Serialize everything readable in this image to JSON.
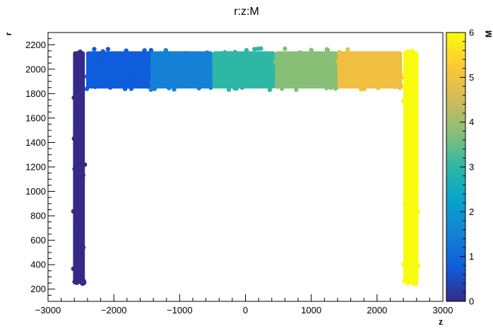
{
  "chart_data": {
    "type": "scatter",
    "title": "r:z:M",
    "xlabel": "z",
    "ylabel": "r",
    "colorbar_label": "M",
    "xlim": [
      -3000,
      3000
    ],
    "ylim": [
      100,
      2300
    ],
    "xticks": [
      -3000,
      -2000,
      -1000,
      0,
      1000,
      2000,
      3000
    ],
    "yticks": [
      200,
      400,
      600,
      800,
      1000,
      1200,
      1400,
      1600,
      1800,
      2000,
      2200
    ],
    "colorbar": {
      "range": [
        0,
        6
      ],
      "ticks": [
        0,
        1,
        2,
        3,
        4,
        5,
        6
      ],
      "palette": [
        "#352a87",
        "#0f5cdd",
        "#1481d6",
        "#06a4ca",
        "#2eb7a4",
        "#87bf77",
        "#d1bb59",
        "#fec832",
        "#f9fb0e"
      ]
    },
    "grid": false,
    "legend": "none",
    "series": [
      {
        "M": 0,
        "color": "#352a87",
        "z_range": [
          -2620,
          -2440
        ],
        "r_range": [
          240,
          2170
        ]
      },
      {
        "M": 1,
        "color": "#0f5cdd",
        "z_range": [
          -2420,
          -1420
        ],
        "r_range": [
          1830,
          2170
        ]
      },
      {
        "M": 2,
        "color": "#1481d6",
        "z_range": [
          -1440,
          -500
        ],
        "r_range": [
          1830,
          2170
        ]
      },
      {
        "M": 3,
        "color": "#2eb7a4",
        "z_range": [
          -500,
          450
        ],
        "r_range": [
          1830,
          2170
        ]
      },
      {
        "M": 4,
        "color": "#87bf77",
        "z_range": [
          450,
          1400
        ],
        "r_range": [
          1830,
          2170
        ]
      },
      {
        "M": 5,
        "color": "#f0bf42",
        "z_range": [
          1400,
          2380
        ],
        "r_range": [
          1830,
          2170
        ]
      },
      {
        "M": 6,
        "color": "#f9fb0e",
        "z_range": [
          2400,
          2630
        ],
        "r_range": [
          240,
          2170
        ]
      }
    ]
  }
}
